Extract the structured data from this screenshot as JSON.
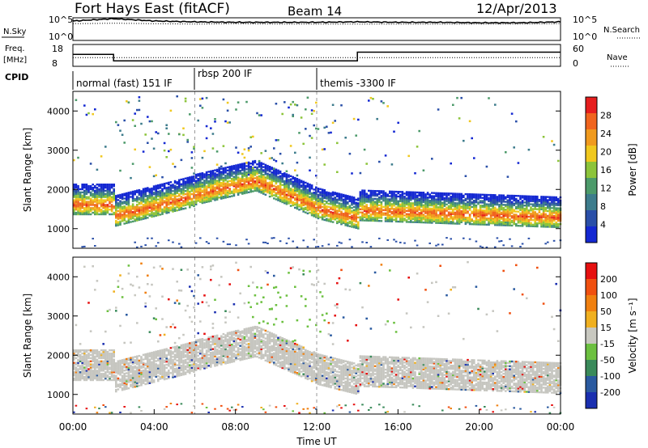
{
  "header": {
    "station": "Fort Hays East (fitACF)",
    "beam": "Beam 14",
    "date": "12/Apr/2013"
  },
  "colors": {
    "power_scale": [
      "#1428d2",
      "#2a4fa8",
      "#3d7c8c",
      "#4c9a6a",
      "#8cc43a",
      "#f0c81e",
      "#f09a1e",
      "#f0641e",
      "#e61e1e"
    ],
    "velocity_scale": [
      "#1a2fb0",
      "#2a5aa0",
      "#3a8a5a",
      "#6cc040",
      "#c8c8c0",
      "#f0b020",
      "#f08010",
      "#f05010",
      "#e61010"
    ],
    "velocity_ground": "#c6c6c0",
    "velocity_green": "#6cc040"
  },
  "chart_data": [
    {
      "type": "line",
      "panel": "nsky-nsearch",
      "left_label": "N.Sky",
      "right_label": "N.Search",
      "left_ticks": [
        "10^5",
        "10^0"
      ],
      "right_ticks": [
        "10^5",
        "10^0"
      ],
      "x": [
        "00:00",
        "02:00",
        "04:00",
        "06:00",
        "08:00",
        "10:00",
        "12:00",
        "14:00",
        "16:00",
        "18:00",
        "20:00",
        "22:00",
        "24:00"
      ],
      "series": [
        {
          "name": "N.Sky",
          "values": [
            4.3,
            4.8,
            4.3,
            4.1,
            4.0,
            4.0,
            4.0,
            4.1,
            4.0,
            4.0,
            3.9,
            3.9,
            4.1
          ]
        },
        {
          "name": "N.Search",
          "values": [
            3.7,
            3.8,
            3.7,
            3.6,
            3.7,
            3.6,
            3.6,
            3.6,
            3.6,
            3.6,
            3.6,
            3.6,
            3.7
          ]
        }
      ],
      "ylim": [
        0,
        5
      ]
    },
    {
      "type": "line",
      "panel": "freq-nave",
      "left_label_top": "Freq.",
      "left_label_bottom": "[MHz]",
      "right_label": "Nave",
      "left_ticks": [
        "18",
        "8"
      ],
      "right_ticks": [
        "60",
        "0"
      ],
      "step_x": [
        0,
        2,
        2,
        14,
        14,
        24
      ],
      "series": [
        {
          "name": "Freq.",
          "values": [
            13.5,
            13.5,
            10.5,
            10.5,
            14.5,
            14.5
          ]
        },
        {
          "name": "Nave",
          "values": [
            24,
            24,
            24,
            24,
            24,
            24
          ]
        }
      ],
      "ylim": [
        8,
        18
      ]
    },
    {
      "type": "table",
      "panel": "cpid",
      "label": "CPID",
      "segments": [
        {
          "text": "normal (fast) 151 IF",
          "start": 0,
          "end": 6
        },
        {
          "text": "rbsp 200 IF",
          "start": 6,
          "end": 12
        },
        {
          "text": "themis -3300 IF",
          "start": 12,
          "end": 24
        }
      ]
    },
    {
      "type": "heatmap",
      "panel": "power",
      "ylabel": "Slant Range [km]",
      "yticks": [
        1000,
        2000,
        3000,
        4000
      ],
      "ylim": [
        500,
        4500
      ],
      "xlim": [
        0,
        24
      ],
      "colorbar_label": "Power [dB]",
      "colorbar_ticks": [
        28,
        24,
        20,
        16,
        12,
        8,
        4
      ]
    },
    {
      "type": "heatmap",
      "panel": "velocity",
      "ylabel": "Slant Range [km]",
      "yticks": [
        1000,
        2000,
        3000,
        4000
      ],
      "ylim": [
        500,
        4500
      ],
      "xlim": [
        0,
        24
      ],
      "colorbar_label": "Velocity [m s⁻¹]",
      "colorbar_ticks": [
        200,
        100,
        50,
        15,
        -15,
        -50,
        -100,
        -200
      ]
    },
    {
      "type": "scatter",
      "panel": "time-axis",
      "xlabel": "Time UT",
      "xticks": [
        "00:00",
        "04:00",
        "08:00",
        "12:00",
        "16:00",
        "20:00",
        "00:00"
      ]
    }
  ]
}
